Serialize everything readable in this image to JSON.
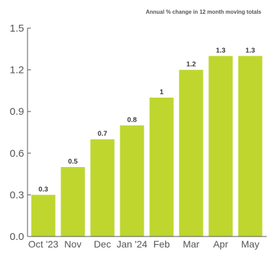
{
  "chart_data": {
    "type": "bar",
    "title": "Annual % change in 12 month moving totals",
    "xlabel": "",
    "ylabel": "",
    "categories": [
      "Oct '23",
      "Nov",
      "Dec",
      "Jan '24",
      "Feb",
      "Mar",
      "Apr",
      "May"
    ],
    "values": [
      0.3,
      0.5,
      0.7,
      0.8,
      1,
      1.2,
      1.3,
      1.3
    ],
    "data_labels": [
      "0.3",
      "0.5",
      "0.7",
      "0.8",
      "1",
      "1.2",
      "1.3",
      "1.3"
    ],
    "ylim": [
      0,
      1.5
    ],
    "yticks": [
      0,
      0.3,
      0.6,
      0.9,
      1.2,
      1.5
    ],
    "ytick_labels": [
      "0.0",
      "0.3",
      "0.6",
      "0.9",
      "1.2",
      "1.5"
    ],
    "grid": false,
    "legend": "none",
    "bar_color": "#bfd62f"
  }
}
